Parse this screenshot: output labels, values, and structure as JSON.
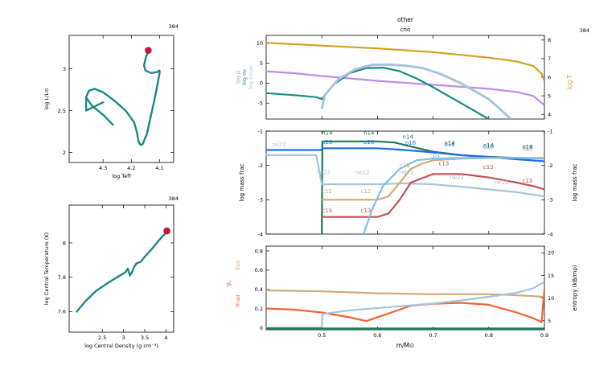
{
  "colors": {
    "teal": "#1a8a82",
    "marker": "#c8143c",
    "gold": "#d4a020",
    "violet": "#c08be8",
    "lightblue": "#a8c4dc",
    "darkgreen": "#1e7a5a",
    "blue": "#1e6ee6",
    "skyblue": "#7cc0ec",
    "tan": "#d2aa78",
    "rosered": "#c85050",
    "orangered": "#f06432"
  },
  "chart_data": [
    {
      "type": "line",
      "id": "hr",
      "model_number": "384",
      "xlabel": "log Teff",
      "ylabel": "log L/L⊙",
      "xlim": [
        4.42,
        4.05
      ],
      "ylim": [
        1.88,
        3.4
      ],
      "x_ticks": [
        "4.3",
        "4.2",
        "4.1"
      ],
      "y_ticks": [
        "2",
        "2.5",
        "3"
      ],
      "series": [
        {
          "x": [
            4.265,
            4.3,
            4.34,
            4.36,
            4.35,
            4.33,
            4.3,
            4.26,
            4.22,
            4.19,
            4.18,
            4.175,
            4.17,
            4.165,
            4.16,
            4.145,
            4.13,
            4.115,
            4.105,
            4.1,
            4.1,
            4.11,
            4.13,
            4.15,
            4.155,
            4.15,
            4.14
          ],
          "y": [
            2.33,
            2.45,
            2.56,
            2.66,
            2.74,
            2.76,
            2.72,
            2.62,
            2.5,
            2.36,
            2.24,
            2.14,
            2.1,
            2.09,
            2.1,
            2.22,
            2.45,
            2.68,
            2.86,
            2.95,
            2.98,
            2.96,
            2.95,
            2.98,
            3.04,
            3.12,
            3.22
          ]
        },
        {
          "x": [
            4.36,
            4.36,
            4.3
          ],
          "y": [
            2.66,
            2.5,
            2.6
          ]
        }
      ],
      "current": {
        "x": 4.14,
        "y": 3.22
      }
    },
    {
      "type": "line",
      "id": "center",
      "model_number": "384",
      "xlabel": "log Central Density (g cm⁻³)",
      "ylabel": "log Central Temperature (K)",
      "xlim": [
        1.72,
        4.18
      ],
      "ylim": [
        7.48,
        8.22
      ],
      "x_ticks": [
        "2.5",
        "3",
        "3.5",
        "4"
      ],
      "y_ticks": [
        "7.6",
        "7.8",
        "8"
      ],
      "series": [
        {
          "x": [
            1.9,
            2.1,
            2.35,
            2.65,
            2.85,
            3.05,
            3.1,
            3.15,
            3.2,
            3.25,
            3.3,
            3.4,
            3.5,
            3.65,
            3.85,
            4.0
          ],
          "y": [
            7.6,
            7.66,
            7.72,
            7.77,
            7.8,
            7.83,
            7.85,
            7.81,
            7.83,
            7.86,
            7.88,
            7.89,
            7.92,
            7.96,
            8.02,
            8.06
          ]
        }
      ],
      "current": {
        "x": 4.02,
        "y": 8.07
      }
    },
    {
      "type": "line",
      "id": "profile_top",
      "title": "other",
      "subtitle": "cno",
      "model_number": "384",
      "xlim": [
        0.4,
        0.9
      ],
      "ylim_left": [
        -9,
        12
      ],
      "ylim_right": [
        3.75,
        8.25
      ],
      "left_ticks": [
        "-5",
        "0",
        "5",
        "10"
      ],
      "right_ticks": [
        "4",
        "5",
        "6",
        "7",
        "8"
      ],
      "left_labels": [
        "log ρ",
        "log σν",
        "log εmax"
      ],
      "right_label": "log T",
      "series": [
        {
          "name": "log T",
          "axis": "right",
          "color": "gold",
          "x": [
            0.4,
            0.5,
            0.6,
            0.7,
            0.8,
            0.85,
            0.88,
            0.895,
            0.9
          ],
          "y": [
            7.85,
            7.7,
            7.55,
            7.35,
            7.05,
            6.85,
            6.6,
            6.2,
            5.8
          ]
        },
        {
          "name": "log ρ",
          "axis": "left",
          "color": "violet",
          "x": [
            0.4,
            0.45,
            0.5,
            0.6,
            0.7,
            0.8,
            0.85,
            0.88,
            0.9
          ],
          "y": [
            3.0,
            2.5,
            1.8,
            0.6,
            -0.4,
            -1.4,
            -2.2,
            -3.2,
            -5.5
          ]
        },
        {
          "name": "log σν",
          "axis": "left",
          "color": "teal",
          "x": [
            0.4,
            0.45,
            0.49,
            0.5,
            0.52,
            0.55,
            0.58,
            0.61,
            0.64,
            0.67,
            0.7,
            0.75,
            0.8
          ],
          "y": [
            -2.5,
            -3.0,
            -3.5,
            -4.0,
            -0.5,
            2.5,
            3.8,
            3.9,
            3.0,
            1.2,
            -1.0,
            -5.0,
            -9.0
          ]
        },
        {
          "name": "log εmax",
          "axis": "left",
          "color": "lightblue",
          "x": [
            0.5,
            0.505,
            0.53,
            0.56,
            0.59,
            0.62,
            0.65,
            0.68,
            0.71,
            0.75,
            0.8,
            0.84
          ],
          "y": [
            -6.5,
            -3.0,
            1.0,
            3.5,
            4.6,
            4.7,
            4.4,
            3.8,
            2.5,
            0.0,
            -4.0,
            -9.0
          ]
        }
      ]
    },
    {
      "type": "line",
      "id": "profile_mid",
      "xlim": [
        0.4,
        0.9
      ],
      "ylim": [
        -4,
        -1
      ],
      "y_ticks": [
        "-4",
        "-3",
        "-2",
        "-1"
      ],
      "ylabel_left": "log mass frac",
      "ylabel_right": "log mass frac",
      "series": [
        {
          "name": "n14",
          "color": "darkgreen",
          "x": [
            0.5,
            0.501,
            0.55,
            0.6,
            0.63,
            0.66,
            0.7,
            0.75,
            0.8,
            0.85,
            0.9
          ],
          "y": [
            -4.0,
            -1.3,
            -1.3,
            -1.3,
            -1.33,
            -1.45,
            -1.6,
            -1.7,
            -1.75,
            -1.78,
            -1.8
          ]
        },
        {
          "name": "c16",
          "color": "blue",
          "x": [
            0.4,
            0.5,
            0.501,
            0.55,
            0.6,
            0.65,
            0.7,
            0.75,
            0.8,
            0.85,
            0.9
          ],
          "y": [
            -1.55,
            -1.55,
            -1.5,
            -1.5,
            -1.5,
            -1.55,
            -1.62,
            -1.7,
            -1.76,
            -1.82,
            -1.88
          ]
        },
        {
          "name": "ne22",
          "color": "lightblue",
          "x": [
            0.4,
            0.49,
            0.5,
            0.55,
            0.6,
            0.65,
            0.7,
            0.75,
            0.8,
            0.85,
            0.9
          ],
          "y": [
            -1.7,
            -1.7,
            -2.55,
            -2.55,
            -2.55,
            -2.52,
            -2.55,
            -2.62,
            -2.7,
            -2.78,
            -2.9
          ]
        },
        {
          "name": "c12",
          "color": "tan",
          "x": [
            0.5,
            0.55,
            0.6,
            0.62,
            0.64,
            0.66,
            0.68,
            0.7,
            0.75,
            0.8,
            0.85,
            0.9
          ],
          "y": [
            -3.0,
            -3.0,
            -3.0,
            -2.9,
            -2.5,
            -2.1,
            -1.95,
            -1.85,
            -1.8,
            -1.78,
            -1.78,
            -1.78
          ]
        },
        {
          "name": "c13",
          "color": "rosered",
          "x": [
            0.5,
            0.55,
            0.6,
            0.62,
            0.64,
            0.66,
            0.7,
            0.75,
            0.8,
            0.85,
            0.88,
            0.9
          ],
          "y": [
            -3.5,
            -3.5,
            -3.5,
            -3.4,
            -3.0,
            -2.5,
            -2.25,
            -2.25,
            -2.35,
            -2.5,
            -2.6,
            -2.7
          ]
        },
        {
          "name": "p1",
          "color": "skyblue",
          "x": [
            0.575,
            0.59,
            0.61,
            0.64,
            0.67,
            0.7,
            0.75,
            0.8,
            0.85,
            0.9
          ],
          "y": [
            -4.0,
            -3.3,
            -2.6,
            -2.1,
            -1.85,
            -1.8,
            -1.78,
            -1.78,
            -1.78,
            -1.8
          ]
        }
      ],
      "labels": [
        {
          "text": "n14",
          "x": 0.5,
          "y": -1.1,
          "color": "darkgreen"
        },
        {
          "text": "n14",
          "x": 0.575,
          "y": -1.1,
          "color": "darkgreen"
        },
        {
          "text": "n14",
          "x": 0.645,
          "y": -1.22,
          "color": "darkgreen"
        },
        {
          "text": "o16",
          "x": 0.5,
          "y": -1.37,
          "color": "blue"
        },
        {
          "text": "o16",
          "x": 0.575,
          "y": -1.37,
          "color": "blue"
        },
        {
          "text": "o16",
          "x": 0.65,
          "y": -1.4,
          "color": "blue"
        },
        {
          "text": "o16",
          "x": 0.72,
          "y": -1.45,
          "color": "blue"
        },
        {
          "text": "o16",
          "x": 0.79,
          "y": -1.5,
          "color": "blue"
        },
        {
          "text": "o16",
          "x": 0.86,
          "y": -1.52,
          "color": "blue"
        },
        {
          "text": "n14",
          "x": 0.72,
          "y": -1.4,
          "color": "darkgreen"
        },
        {
          "text": "n14",
          "x": 0.79,
          "y": -1.47,
          "color": "darkgreen"
        },
        {
          "text": "n14",
          "x": 0.86,
          "y": -1.53,
          "color": "darkgreen"
        },
        {
          "text": "ne22",
          "x": 0.41,
          "y": -1.45,
          "color": "lightblue"
        },
        {
          "text": "ne22",
          "x": 0.49,
          "y": -2.25,
          "color": "lightblue"
        },
        {
          "text": "ne22",
          "x": 0.56,
          "y": -2.25,
          "color": "lightblue"
        },
        {
          "text": "ne22",
          "x": 0.64,
          "y": -2.25,
          "color": "lightblue"
        },
        {
          "text": "ne22",
          "x": 0.73,
          "y": -2.4,
          "color": "lightblue"
        },
        {
          "text": "ne22",
          "x": 0.81,
          "y": -2.55,
          "color": "lightblue"
        },
        {
          "text": "c12",
          "x": 0.5,
          "y": -2.8,
          "color": "tan"
        },
        {
          "text": "c12",
          "x": 0.57,
          "y": -2.8,
          "color": "tan"
        },
        {
          "text": "c12",
          "x": 0.64,
          "y": -2.05,
          "color": "tan"
        },
        {
          "text": "c12",
          "x": 0.86,
          "y": -1.57,
          "color": "tan"
        },
        {
          "text": "c13",
          "x": 0.5,
          "y": -3.37,
          "color": "rosered"
        },
        {
          "text": "c13",
          "x": 0.57,
          "y": -3.37,
          "color": "rosered"
        },
        {
          "text": "c13",
          "x": 0.71,
          "y": -2.0,
          "color": "rosered"
        },
        {
          "text": "c13",
          "x": 0.79,
          "y": -2.1,
          "color": "rosered"
        },
        {
          "text": "c13",
          "x": 0.86,
          "y": -2.5,
          "color": "rosered"
        },
        {
          "text": "p1",
          "x": 0.7,
          "y": -1.75,
          "color": "skyblue"
        }
      ]
    },
    {
      "type": "line",
      "id": "profile_bottom",
      "xlim": [
        0.4,
        0.9
      ],
      "ylim_left": [
        -0.02,
        0.85
      ],
      "ylim_right": [
        3.0,
        21.5
      ],
      "left_ticks": [
        "0",
        "0.2",
        "0.4",
        "0.6",
        "0.8"
      ],
      "right_ticks": [
        "5",
        "10",
        "15",
        "20"
      ],
      "x_ticks": [
        "0.5",
        "0.6",
        "0.7",
        "0.8",
        "0.9"
      ],
      "xlabel": "m/M⊙",
      "left_labels": [
        "∇ad",
        "∇ₓ",
        "∇rad"
      ],
      "right_label": "entropy (kB/mp)",
      "series": [
        {
          "name": "∇ad",
          "axis": "left",
          "color": "tan",
          "x": [
            0.4,
            0.5,
            0.6,
            0.7,
            0.8,
            0.85,
            0.88,
            0.9
          ],
          "y": [
            0.39,
            0.38,
            0.36,
            0.35,
            0.35,
            0.34,
            0.33,
            0.32
          ]
        },
        {
          "name": "∇rad",
          "axis": "left",
          "color": "orangered",
          "x": [
            0.4,
            0.45,
            0.5,
            0.55,
            0.58,
            0.62,
            0.66,
            0.7,
            0.75,
            0.8,
            0.85,
            0.88,
            0.895,
            0.9
          ],
          "y": [
            0.2,
            0.19,
            0.16,
            0.11,
            0.07,
            0.15,
            0.23,
            0.25,
            0.26,
            0.24,
            0.16,
            0.1,
            0.06,
            0.4
          ]
        },
        {
          "name": "entropy",
          "axis": "right",
          "color": "lightblue",
          "x": [
            0.4,
            0.5,
            0.501,
            0.55,
            0.6,
            0.65,
            0.7,
            0.75,
            0.8,
            0.85,
            0.88,
            0.9
          ],
          "y": [
            3.5,
            3.5,
            6.5,
            7.3,
            7.8,
            8.3,
            8.8,
            9.5,
            10.3,
            11.2,
            12.2,
            13.6
          ]
        },
        {
          "name": "bottom",
          "axis": "left",
          "color": "darkgreen",
          "x": [
            0.4,
            0.9
          ],
          "y": [
            -0.01,
            -0.01
          ]
        }
      ]
    }
  ]
}
